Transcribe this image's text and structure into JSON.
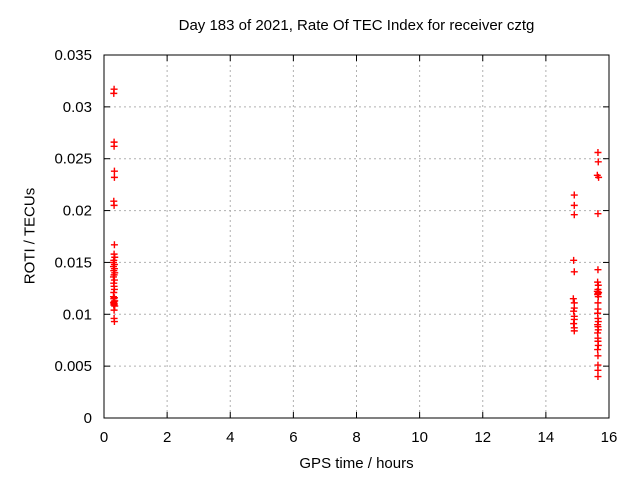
{
  "figure": {
    "background_color": "#ffffff",
    "text_color": "#000000"
  },
  "chart_data": {
    "type": "scatter",
    "title": "Day 183 of 2021, Rate Of TEC Index for receiver cztg",
    "xlabel": "GPS time / hours",
    "ylabel": "ROTI / TECUs",
    "xlim": [
      0,
      16
    ],
    "ylim": [
      0,
      0.035
    ],
    "xticks": [
      0,
      2,
      4,
      6,
      8,
      10,
      12,
      14,
      16
    ],
    "xtick_labels": [
      "0",
      "2",
      "4",
      "6",
      "8",
      "10",
      "12",
      "14",
      "16"
    ],
    "yticks": [
      0,
      0.005,
      0.01,
      0.015,
      0.02,
      0.025,
      0.03,
      0.035
    ],
    "ytick_labels": [
      "0",
      "0.005",
      "0.01",
      "0.015",
      "0.02",
      "0.025",
      "0.03",
      "0.035"
    ],
    "grid": true,
    "grid_style": "dashed",
    "grid_color": "#b0b0b0",
    "axis_color": "#000000",
    "legend_position": "none",
    "marker": {
      "shape": "plus",
      "color": "#ff0000",
      "size": 7
    },
    "series": [
      {
        "name": "ROTI",
        "points": [
          [
            0.32,
            0.0317
          ],
          [
            0.31,
            0.0313
          ],
          [
            0.32,
            0.0266
          ],
          [
            0.32,
            0.0262
          ],
          [
            0.33,
            0.0238
          ],
          [
            0.33,
            0.0232
          ],
          [
            0.31,
            0.0209
          ],
          [
            0.32,
            0.0205
          ],
          [
            0.33,
            0.0167
          ],
          [
            0.32,
            0.0158
          ],
          [
            0.34,
            0.0155
          ],
          [
            0.31,
            0.0152
          ],
          [
            0.3,
            0.015
          ],
          [
            0.33,
            0.0148
          ],
          [
            0.3,
            0.0146
          ],
          [
            0.33,
            0.0144
          ],
          [
            0.31,
            0.0142
          ],
          [
            0.34,
            0.014
          ],
          [
            0.32,
            0.0138
          ],
          [
            0.3,
            0.0136
          ],
          [
            0.33,
            0.0133
          ],
          [
            0.31,
            0.013
          ],
          [
            0.32,
            0.0127
          ],
          [
            0.33,
            0.0124
          ],
          [
            0.31,
            0.0121
          ],
          [
            0.3,
            0.0117
          ],
          [
            0.33,
            0.0116
          ],
          [
            0.31,
            0.0115
          ],
          [
            0.34,
            0.0113
          ],
          [
            0.32,
            0.0112
          ],
          [
            0.3,
            0.0111
          ],
          [
            0.33,
            0.011
          ],
          [
            0.31,
            0.0109
          ],
          [
            0.34,
            0.0108
          ],
          [
            0.32,
            0.0104
          ],
          [
            0.32,
            0.0096
          ],
          [
            0.33,
            0.0093
          ],
          [
            14.9,
            0.0215
          ],
          [
            14.9,
            0.0205
          ],
          [
            14.9,
            0.0196
          ],
          [
            14.88,
            0.0152
          ],
          [
            14.9,
            0.0141
          ],
          [
            14.87,
            0.0115
          ],
          [
            14.9,
            0.0111
          ],
          [
            14.9,
            0.0106
          ],
          [
            14.88,
            0.0103
          ],
          [
            14.9,
            0.0098
          ],
          [
            14.9,
            0.0095
          ],
          [
            14.88,
            0.0091
          ],
          [
            14.9,
            0.0087
          ],
          [
            14.9,
            0.0084
          ],
          [
            15.65,
            0.0256
          ],
          [
            15.66,
            0.0247
          ],
          [
            15.63,
            0.0234
          ],
          [
            15.67,
            0.0232
          ],
          [
            15.65,
            0.0197
          ],
          [
            15.65,
            0.0143
          ],
          [
            15.64,
            0.0131
          ],
          [
            15.66,
            0.0128
          ],
          [
            15.65,
            0.0124
          ],
          [
            15.63,
            0.0122
          ],
          [
            15.67,
            0.0121
          ],
          [
            15.65,
            0.012
          ],
          [
            15.64,
            0.0119
          ],
          [
            15.66,
            0.0117
          ],
          [
            15.65,
            0.0111
          ],
          [
            15.65,
            0.0105
          ],
          [
            15.64,
            0.0101
          ],
          [
            15.65,
            0.0096
          ],
          [
            15.66,
            0.0093
          ],
          [
            15.64,
            0.009
          ],
          [
            15.65,
            0.0088
          ],
          [
            15.66,
            0.0085
          ],
          [
            15.64,
            0.0082
          ],
          [
            15.65,
            0.0077
          ],
          [
            15.65,
            0.0074
          ],
          [
            15.66,
            0.007
          ],
          [
            15.64,
            0.0066
          ],
          [
            15.65,
            0.006
          ],
          [
            15.65,
            0.0051
          ],
          [
            15.65,
            0.0046
          ],
          [
            15.65,
            0.004
          ]
        ]
      }
    ]
  }
}
